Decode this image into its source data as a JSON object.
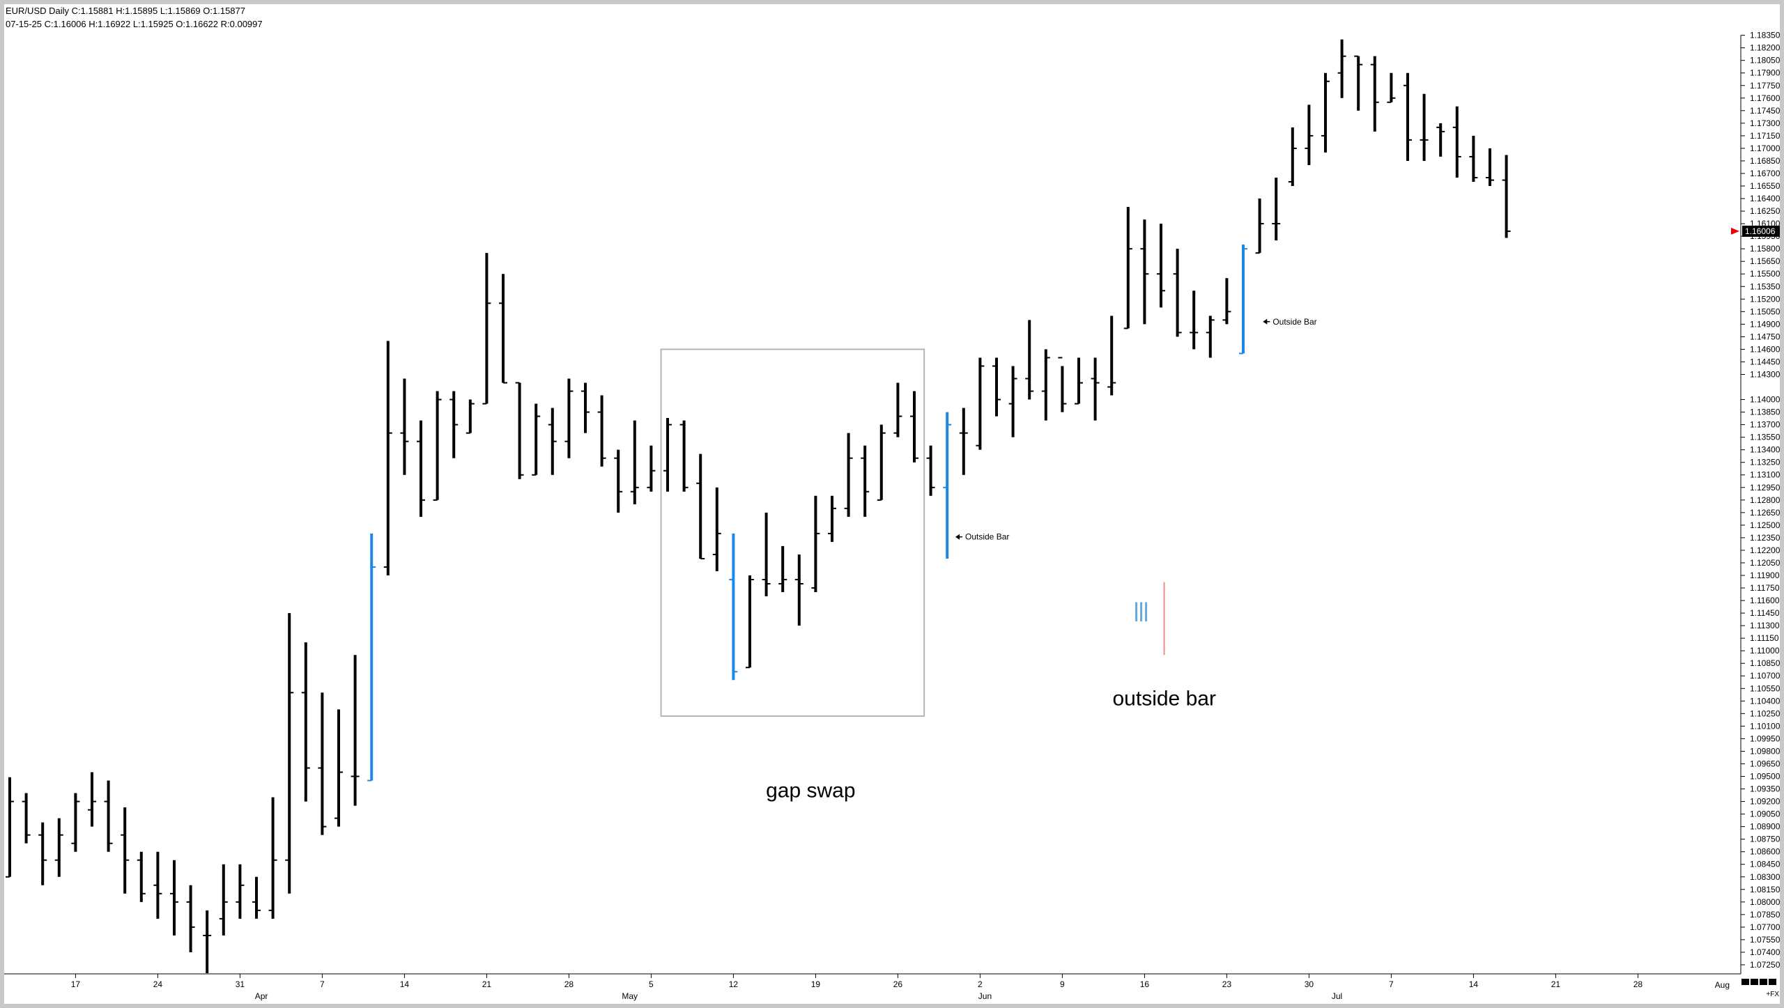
{
  "header": {
    "line1": "EUR/USD Daily  C:1.15881  H:1.15895  L:1.15869  O:1.15877",
    "line2": "07-15-25   C:1.16006   H:1.16922   L:1.15925   O:1.16622   R:0.00997"
  },
  "price_marker": {
    "label": "1.16006",
    "arrow_color": "#e8000b"
  },
  "colors": {
    "bar": "#000000",
    "outside_bar": "#1e88e5",
    "legend_red": "#f28b8b",
    "legend_blue": "#6aa8dc",
    "box": "#b4b4b4"
  },
  "annotations": {
    "outside_bar_label_1": "Outside Bar",
    "outside_bar_label_2": "Outside Bar",
    "gap_swap": "gap swap",
    "outside_bar_text": "outside bar"
  },
  "axis_corner": {
    "left": "Aug",
    "right": "+FX"
  },
  "chart_data": {
    "type": "ohlc",
    "title": "EUR/USD Daily",
    "ylim": [
      1.0715,
      1.1848
    ],
    "y_ticks": [
      "1.18350",
      "1.18200",
      "1.18050",
      "1.17900",
      "1.17750",
      "1.17600",
      "1.17450",
      "1.17300",
      "1.17150",
      "1.17000",
      "1.16850",
      "1.16700",
      "1.16550",
      "1.16400",
      "1.16250",
      "1.16100",
      "1.15950",
      "1.15800",
      "1.15650",
      "1.15500",
      "1.15350",
      "1.15200",
      "1.15050",
      "1.14900",
      "1.14750",
      "1.14600",
      "1.14450",
      "1.14300",
      "1.14000",
      "1.13850",
      "1.13700",
      "1.13550",
      "1.13400",
      "1.13250",
      "1.13100",
      "1.12950",
      "1.12800",
      "1.12650",
      "1.12500",
      "1.12350",
      "1.12200",
      "1.12050",
      "1.11900",
      "1.11750",
      "1.11600",
      "1.11450",
      "1.11300",
      "1.11150",
      "1.11000",
      "1.10850",
      "1.10700",
      "1.10550",
      "1.10400",
      "1.10250",
      "1.10100",
      "1.09950",
      "1.09800",
      "1.09650",
      "1.09500",
      "1.09350",
      "1.09200",
      "1.09050",
      "1.08900",
      "1.08750",
      "1.08600",
      "1.08450",
      "1.08300",
      "1.08150",
      "1.08000",
      "1.07850",
      "1.07700",
      "1.07550",
      "1.07400",
      "1.07250"
    ],
    "x_day_ticks": [
      {
        "label": "17",
        "i": 4
      },
      {
        "label": "24",
        "i": 9
      },
      {
        "label": "31",
        "i": 14
      },
      {
        "label": "7",
        "i": 19
      },
      {
        "label": "14",
        "i": 24
      },
      {
        "label": "21",
        "i": 29
      },
      {
        "label": "28",
        "i": 34
      },
      {
        "label": "5",
        "i": 39
      },
      {
        "label": "12",
        "i": 44
      },
      {
        "label": "19",
        "i": 49
      },
      {
        "label": "26",
        "i": 54
      },
      {
        "label": "2",
        "i": 59
      },
      {
        "label": "9",
        "i": 64
      },
      {
        "label": "16",
        "i": 69
      },
      {
        "label": "23",
        "i": 74
      },
      {
        "label": "30",
        "i": 79
      },
      {
        "label": "7",
        "i": 84
      },
      {
        "label": "14",
        "i": 89
      },
      {
        "label": "21",
        "i": 94
      },
      {
        "label": "28",
        "i": 99
      }
    ],
    "x_month_ticks": [
      {
        "label": "Apr",
        "i": 15.3
      },
      {
        "label": "May",
        "i": 37.7
      },
      {
        "label": "Jun",
        "i": 59.3
      },
      {
        "label": "Jul",
        "i": 80.7
      }
    ],
    "bars": [
      {
        "o": 1.083,
        "h": 1.0949,
        "l": 1.083,
        "c": 1.092,
        "outside": false
      },
      {
        "o": 1.092,
        "h": 1.093,
        "l": 1.087,
        "c": 1.088,
        "outside": false
      },
      {
        "o": 1.088,
        "h": 1.0895,
        "l": 1.082,
        "c": 1.085,
        "outside": false
      },
      {
        "o": 1.085,
        "h": 1.09,
        "l": 1.083,
        "c": 1.088,
        "outside": false
      },
      {
        "o": 1.087,
        "h": 1.093,
        "l": 1.086,
        "c": 1.092,
        "outside": false
      },
      {
        "o": 1.091,
        "h": 1.0955,
        "l": 1.089,
        "c": 1.092,
        "outside": false
      },
      {
        "o": 1.092,
        "h": 1.0945,
        "l": 1.086,
        "c": 1.087,
        "outside": false
      },
      {
        "o": 1.088,
        "h": 1.0913,
        "l": 1.081,
        "c": 1.085,
        "outside": false
      },
      {
        "o": 1.085,
        "h": 1.086,
        "l": 1.08,
        "c": 1.081,
        "outside": false
      },
      {
        "o": 1.082,
        "h": 1.086,
        "l": 1.078,
        "c": 1.081,
        "outside": false
      },
      {
        "o": 1.081,
        "h": 1.085,
        "l": 1.076,
        "c": 1.08,
        "outside": false
      },
      {
        "o": 1.08,
        "h": 1.082,
        "l": 1.074,
        "c": 1.077,
        "outside": false
      },
      {
        "o": 1.076,
        "h": 1.079,
        "l": 1.0715,
        "c": 1.076,
        "outside": false
      },
      {
        "o": 1.078,
        "h": 1.0845,
        "l": 1.076,
        "c": 1.08,
        "outside": false
      },
      {
        "o": 1.08,
        "h": 1.0845,
        "l": 1.078,
        "c": 1.082,
        "outside": false
      },
      {
        "o": 1.08,
        "h": 1.083,
        "l": 1.078,
        "c": 1.079,
        "outside": false
      },
      {
        "o": 1.079,
        "h": 1.0925,
        "l": 1.078,
        "c": 1.085,
        "outside": false
      },
      {
        "o": 1.085,
        "h": 1.1145,
        "l": 1.081,
        "c": 1.105,
        "outside": false
      },
      {
        "o": 1.105,
        "h": 1.111,
        "l": 1.092,
        "c": 1.096,
        "outside": false
      },
      {
        "o": 1.096,
        "h": 1.105,
        "l": 1.088,
        "c": 1.089,
        "outside": false
      },
      {
        "o": 1.09,
        "h": 1.103,
        "l": 1.089,
        "c": 1.0955,
        "outside": false
      },
      {
        "o": 1.095,
        "h": 1.1095,
        "l": 1.0915,
        "c": 1.095,
        "outside": false
      },
      {
        "o": 1.0945,
        "h": 1.124,
        "l": 1.0945,
        "c": 1.12,
        "outside": true
      },
      {
        "o": 1.12,
        "h": 1.147,
        "l": 1.119,
        "c": 1.136,
        "outside": false
      },
      {
        "o": 1.136,
        "h": 1.1425,
        "l": 1.131,
        "c": 1.135,
        "outside": false
      },
      {
        "o": 1.135,
        "h": 1.1375,
        "l": 1.126,
        "c": 1.128,
        "outside": false
      },
      {
        "o": 1.128,
        "h": 1.141,
        "l": 1.128,
        "c": 1.14,
        "outside": false
      },
      {
        "o": 1.14,
        "h": 1.141,
        "l": 1.133,
        "c": 1.137,
        "outside": false
      },
      {
        "o": 1.136,
        "h": 1.14,
        "l": 1.136,
        "c": 1.1395,
        "outside": false
      },
      {
        "o": 1.1395,
        "h": 1.1575,
        "l": 1.1395,
        "c": 1.1515,
        "outside": false
      },
      {
        "o": 1.1515,
        "h": 1.155,
        "l": 1.142,
        "c": 1.142,
        "outside": false
      },
      {
        "o": 1.142,
        "h": 1.142,
        "l": 1.1305,
        "c": 1.131,
        "outside": false
      },
      {
        "o": 1.131,
        "h": 1.1395,
        "l": 1.131,
        "c": 1.138,
        "outside": false
      },
      {
        "o": 1.137,
        "h": 1.139,
        "l": 1.131,
        "c": 1.135,
        "outside": false
      },
      {
        "o": 1.135,
        "h": 1.1425,
        "l": 1.133,
        "c": 1.141,
        "outside": false
      },
      {
        "o": 1.141,
        "h": 1.142,
        "l": 1.136,
        "c": 1.1385,
        "outside": false
      },
      {
        "o": 1.1385,
        "h": 1.1405,
        "l": 1.132,
        "c": 1.133,
        "outside": false
      },
      {
        "o": 1.133,
        "h": 1.134,
        "l": 1.1265,
        "c": 1.129,
        "outside": false
      },
      {
        "o": 1.129,
        "h": 1.1375,
        "l": 1.1275,
        "c": 1.1295,
        "outside": false
      },
      {
        "o": 1.1295,
        "h": 1.1345,
        "l": 1.129,
        "c": 1.1315,
        "outside": false
      },
      {
        "o": 1.1315,
        "h": 1.1378,
        "l": 1.129,
        "c": 1.137,
        "outside": false
      },
      {
        "o": 1.137,
        "h": 1.1375,
        "l": 1.129,
        "c": 1.1295,
        "outside": false
      },
      {
        "o": 1.13,
        "h": 1.1335,
        "l": 1.121,
        "c": 1.121,
        "outside": false
      },
      {
        "o": 1.1215,
        "h": 1.1295,
        "l": 1.1195,
        "c": 1.124,
        "outside": false
      },
      {
        "o": 1.1185,
        "h": 1.124,
        "l": 1.1065,
        "c": 1.1075,
        "outside": true
      },
      {
        "o": 1.108,
        "h": 1.119,
        "l": 1.108,
        "c": 1.1185,
        "outside": false
      },
      {
        "o": 1.1185,
        "h": 1.1265,
        "l": 1.1165,
        "c": 1.118,
        "outside": false
      },
      {
        "o": 1.118,
        "h": 1.1225,
        "l": 1.117,
        "c": 1.1185,
        "outside": false
      },
      {
        "o": 1.1185,
        "h": 1.1215,
        "l": 1.113,
        "c": 1.118,
        "outside": false
      },
      {
        "o": 1.1175,
        "h": 1.1285,
        "l": 1.117,
        "c": 1.124,
        "outside": false
      },
      {
        "o": 1.124,
        "h": 1.1285,
        "l": 1.123,
        "c": 1.127,
        "outside": false
      },
      {
        "o": 1.127,
        "h": 1.136,
        "l": 1.126,
        "c": 1.133,
        "outside": false
      },
      {
        "o": 1.133,
        "h": 1.1345,
        "l": 1.126,
        "c": 1.129,
        "outside": false
      },
      {
        "o": 1.128,
        "h": 1.137,
        "l": 1.128,
        "c": 1.136,
        "outside": false
      },
      {
        "o": 1.136,
        "h": 1.142,
        "l": 1.1355,
        "c": 1.138,
        "outside": false
      },
      {
        "o": 1.138,
        "h": 1.141,
        "l": 1.1325,
        "c": 1.133,
        "outside": false
      },
      {
        "o": 1.133,
        "h": 1.1345,
        "l": 1.1285,
        "c": 1.1295,
        "outside": false
      },
      {
        "o": 1.1295,
        "h": 1.1385,
        "l": 1.121,
        "c": 1.137,
        "outside": true
      },
      {
        "o": 1.136,
        "h": 1.139,
        "l": 1.131,
        "c": 1.136,
        "outside": false
      },
      {
        "o": 1.1345,
        "h": 1.145,
        "l": 1.134,
        "c": 1.144,
        "outside": false
      },
      {
        "o": 1.144,
        "h": 1.145,
        "l": 1.138,
        "c": 1.14,
        "outside": false
      },
      {
        "o": 1.1395,
        "h": 1.144,
        "l": 1.1355,
        "c": 1.1425,
        "outside": false
      },
      {
        "o": 1.1425,
        "h": 1.1495,
        "l": 1.14,
        "c": 1.141,
        "outside": false
      },
      {
        "o": 1.141,
        "h": 1.146,
        "l": 1.1375,
        "c": 1.145,
        "outside": false
      },
      {
        "o": 1.145,
        "h": 1.144,
        "l": 1.1385,
        "c": 1.1395,
        "outside": false
      },
      {
        "o": 1.1395,
        "h": 1.145,
        "l": 1.1395,
        "c": 1.142,
        "outside": false
      },
      {
        "o": 1.1425,
        "h": 1.145,
        "l": 1.1375,
        "c": 1.142,
        "outside": false
      },
      {
        "o": 1.1415,
        "h": 1.15,
        "l": 1.1405,
        "c": 1.142,
        "outside": false
      },
      {
        "o": 1.1485,
        "h": 1.163,
        "l": 1.1485,
        "c": 1.158,
        "outside": false
      },
      {
        "o": 1.158,
        "h": 1.1615,
        "l": 1.149,
        "c": 1.155,
        "outside": false
      },
      {
        "o": 1.155,
        "h": 1.161,
        "l": 1.151,
        "c": 1.153,
        "outside": false
      },
      {
        "o": 1.155,
        "h": 1.158,
        "l": 1.1475,
        "c": 1.148,
        "outside": false
      },
      {
        "o": 1.148,
        "h": 1.153,
        "l": 1.146,
        "c": 1.148,
        "outside": false
      },
      {
        "o": 1.148,
        "h": 1.15,
        "l": 1.145,
        "c": 1.1495,
        "outside": false
      },
      {
        "o": 1.1495,
        "h": 1.1545,
        "l": 1.149,
        "c": 1.1505,
        "outside": false
      },
      {
        "o": 1.1455,
        "h": 1.1585,
        "l": 1.1455,
        "c": 1.158,
        "outside": true
      },
      {
        "o": 1.1575,
        "h": 1.164,
        "l": 1.1575,
        "c": 1.161,
        "outside": false
      },
      {
        "o": 1.161,
        "h": 1.1665,
        "l": 1.159,
        "c": 1.161,
        "outside": false
      },
      {
        "o": 1.166,
        "h": 1.1725,
        "l": 1.1655,
        "c": 1.17,
        "outside": false
      },
      {
        "o": 1.17,
        "h": 1.1752,
        "l": 1.168,
        "c": 1.1715,
        "outside": false
      },
      {
        "o": 1.1715,
        "h": 1.179,
        "l": 1.1695,
        "c": 1.178,
        "outside": false
      },
      {
        "o": 1.179,
        "h": 1.183,
        "l": 1.176,
        "c": 1.181,
        "outside": false
      },
      {
        "o": 1.181,
        "h": 1.181,
        "l": 1.1745,
        "c": 1.18,
        "outside": false
      },
      {
        "o": 1.18,
        "h": 1.181,
        "l": 1.172,
        "c": 1.1755,
        "outside": false
      },
      {
        "o": 1.1755,
        "h": 1.179,
        "l": 1.1755,
        "c": 1.176,
        "outside": false
      },
      {
        "o": 1.1775,
        "h": 1.179,
        "l": 1.1685,
        "c": 1.171,
        "outside": false
      },
      {
        "o": 1.171,
        "h": 1.1765,
        "l": 1.1685,
        "c": 1.171,
        "outside": false
      },
      {
        "o": 1.1725,
        "h": 1.173,
        "l": 1.169,
        "c": 1.172,
        "outside": false
      },
      {
        "o": 1.1725,
        "h": 1.175,
        "l": 1.1665,
        "c": 1.169,
        "outside": false
      },
      {
        "o": 1.169,
        "h": 1.1715,
        "l": 1.166,
        "c": 1.1665,
        "outside": false
      },
      {
        "o": 1.1665,
        "h": 1.17,
        "l": 1.1655,
        "c": 1.1662,
        "outside": false
      },
      {
        "o": 1.1662,
        "h": 1.1692,
        "l": 1.1593,
        "c": 1.1601,
        "outside": false
      }
    ],
    "rect": {
      "i0": 39.6,
      "i1": 55.6,
      "y_top": 1.146,
      "y_bottom": 1.1022
    },
    "annotations_at": [
      {
        "i": 57.5,
        "y": 1.1236
      },
      {
        "i": 76.2,
        "y": 1.1493
      }
    ],
    "text_at": [
      {
        "key": "gap_swap",
        "i": 48.7,
        "y": 1.0925
      },
      {
        "key": "outside_bar_text",
        "i": 70.2,
        "y": 1.1035
      }
    ],
    "legend_glyph": {
      "i": 68.5,
      "y_top": 1.1182,
      "y_bottom": 1.1095
    }
  }
}
